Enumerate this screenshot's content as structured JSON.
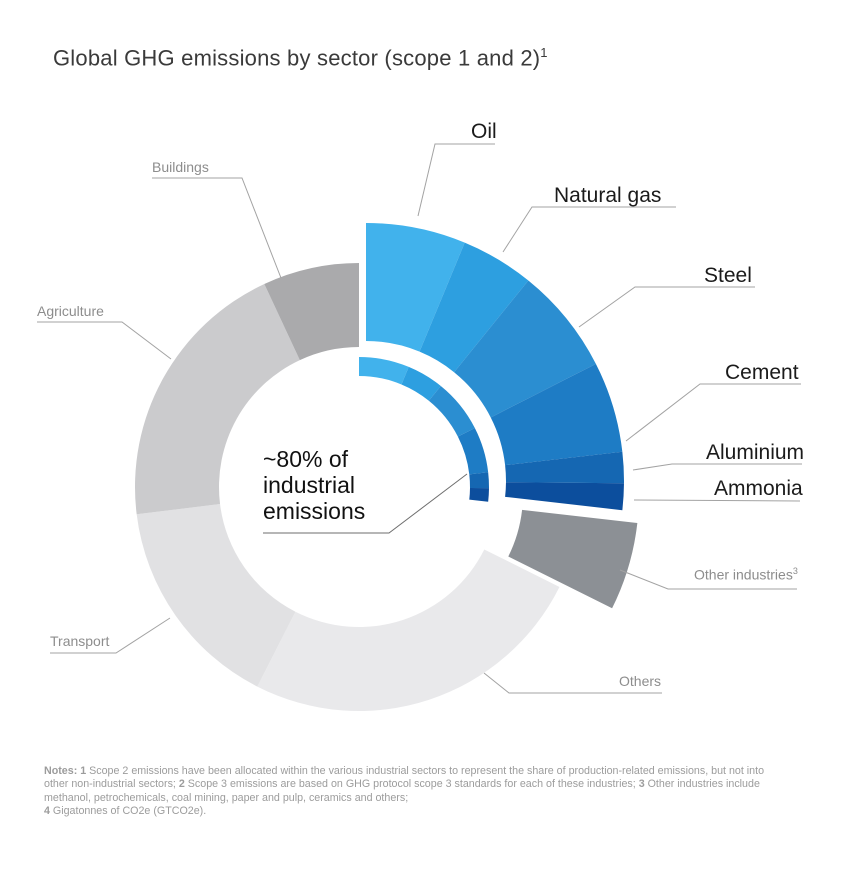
{
  "title": {
    "text": "Global GHG emissions by sector (scope 1 and 2)",
    "superscript": "1"
  },
  "center_label": {
    "text": "~80% of industrial emissions"
  },
  "chart_data": {
    "type": "donut",
    "title": "Global GHG emissions by sector (scope 1 and 2)",
    "legend_position": "outside-callout-labels",
    "total_deg": 360,
    "segments": [
      {
        "id": "oil",
        "label": "Oil",
        "start_deg": 0,
        "end_deg": 22.5,
        "share_pct_est": 6.3,
        "color": "#41b2ec",
        "group": "industrial",
        "exploded": true,
        "label_style": "black"
      },
      {
        "id": "natural-gas",
        "label": "Natural gas",
        "start_deg": 22.5,
        "end_deg": 39,
        "share_pct_est": 4.6,
        "color": "#2d9fe0",
        "group": "industrial",
        "exploded": true,
        "label_style": "black"
      },
      {
        "id": "steel",
        "label": "Steel",
        "start_deg": 39,
        "end_deg": 63,
        "share_pct_est": 6.7,
        "color": "#2b8ed1",
        "group": "industrial",
        "exploded": true,
        "label_style": "black"
      },
      {
        "id": "cement",
        "label": "Cement",
        "start_deg": 63,
        "end_deg": 83.5,
        "share_pct_est": 5.7,
        "color": "#1e7cc5",
        "group": "industrial",
        "exploded": true,
        "label_style": "black"
      },
      {
        "id": "aluminium",
        "label": "Aluminium",
        "start_deg": 83.5,
        "end_deg": 90.5,
        "share_pct_est": 1.9,
        "color": "#1567b2",
        "group": "industrial",
        "exploded": true,
        "label_style": "black"
      },
      {
        "id": "ammonia",
        "label": "Ammonia",
        "start_deg": 90.5,
        "end_deg": 96.5,
        "share_pct_est": 1.7,
        "color": "#0c4e9d",
        "group": "industrial",
        "exploded": true,
        "label_style": "black"
      },
      {
        "id": "other-industries",
        "label": "Other industries",
        "label_sup": "3",
        "start_deg": 96.5,
        "end_deg": 116.5,
        "share_pct_est": 5.6,
        "color": "#8c9095",
        "group": "industrial-other",
        "exploded": true,
        "label_style": "gray"
      },
      {
        "id": "others",
        "label": "Others",
        "start_deg": 116.5,
        "end_deg": 207,
        "share_pct_est": 25.1,
        "color": "#e9e9eb",
        "group": "non-industrial",
        "exploded": false,
        "label_style": "gray"
      },
      {
        "id": "transport",
        "label": "Transport",
        "start_deg": 207,
        "end_deg": 263,
        "share_pct_est": 15.6,
        "color": "#e1e1e3",
        "group": "non-industrial",
        "exploded": false,
        "label_style": "gray"
      },
      {
        "id": "agriculture",
        "label": "Agriculture",
        "start_deg": 263,
        "end_deg": 335,
        "share_pct_est": 20.0,
        "color": "#cbcbcd",
        "group": "non-industrial",
        "exploded": false,
        "label_style": "gray"
      },
      {
        "id": "buildings",
        "label": "Buildings",
        "start_deg": 335,
        "end_deg": 360,
        "share_pct_est": 6.9,
        "color": "#aaaaac",
        "group": "non-industrial",
        "exploded": false,
        "label_style": "gray"
      }
    ],
    "highlight_arc": {
      "label": "~80% of industrial emissions",
      "start_deg": 0,
      "end_deg": 97,
      "covers_groups": [
        "industrial"
      ]
    }
  },
  "notes": {
    "lines": [
      [
        {
          "text": "Notes: 1",
          "bold": true
        },
        {
          "text": " Scope 2 emissions have been allocated within the various industrial sectors to represent the share of production-related emissions, but not into",
          "bold": false
        }
      ],
      [
        {
          "text": "other non-industrial sectors; ",
          "bold": false
        },
        {
          "text": "2",
          "bold": true
        },
        {
          "text": " Scope 3 emissions are based on GHG protocol scope 3 standards for each of these industries; ",
          "bold": false
        },
        {
          "text": "3",
          "bold": true
        },
        {
          "text": " Other industries include",
          "bold": false
        }
      ],
      [
        {
          "text": "methanol, petrochemicals, coal mining, paper and pulp, ceramics and others;",
          "bold": false
        }
      ],
      [
        {
          "text": "4",
          "bold": true
        },
        {
          "text": " Gigatonnes of CO2e (GTCO2e).",
          "bold": false
        }
      ]
    ]
  }
}
